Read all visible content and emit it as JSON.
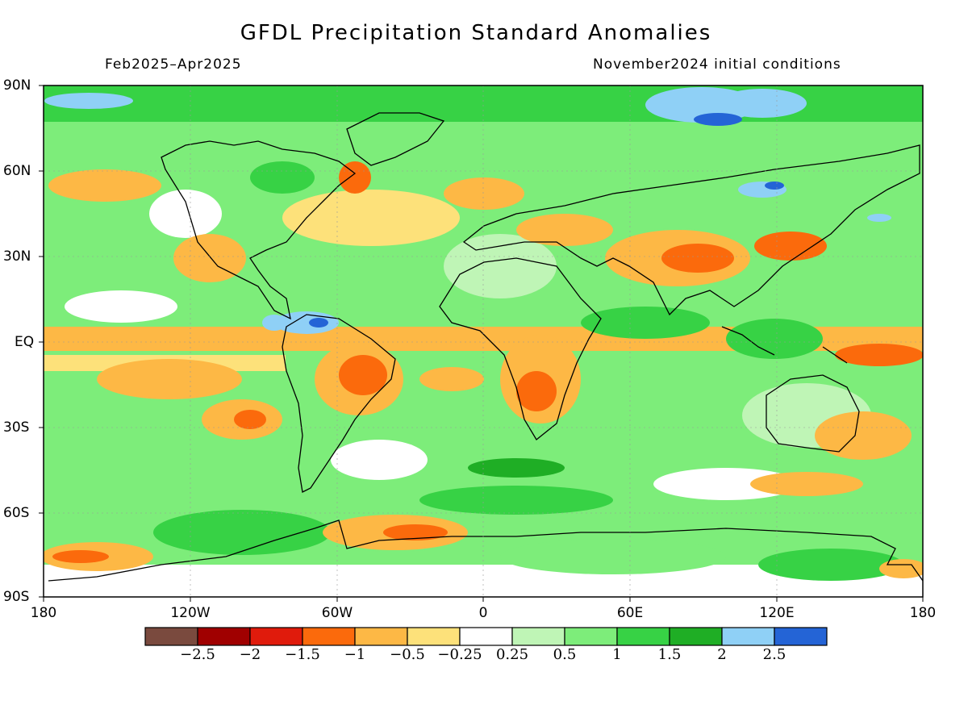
{
  "title": "GFDL Precipitation Standard Anomalies",
  "subtitle_left": "Feb2025–Apr2025",
  "subtitle_right": "November2024 initial conditions",
  "y_ticks": [
    "90N",
    "60N",
    "30N",
    "EQ",
    "30S",
    "60S",
    "90S"
  ],
  "x_ticks": [
    "180",
    "120W",
    "60W",
    "0",
    "60E",
    "120E",
    "180"
  ],
  "colorbar": {
    "colors": [
      "#7a4a3e",
      "#a00000",
      "#e01b0c",
      "#fb6a0c",
      "#fdb845",
      "#fde17a",
      "#ffffff",
      "#bff5b6",
      "#7ded7a",
      "#37d245",
      "#1fae25",
      "#8fd0f6",
      "#2464d6"
    ],
    "labels": [
      "−2.5",
      "−2",
      "−1.5",
      "−1",
      "−0.5",
      "−0.25",
      "0.25",
      "0.5",
      "1",
      "1.5",
      "2",
      "2.5"
    ]
  }
}
